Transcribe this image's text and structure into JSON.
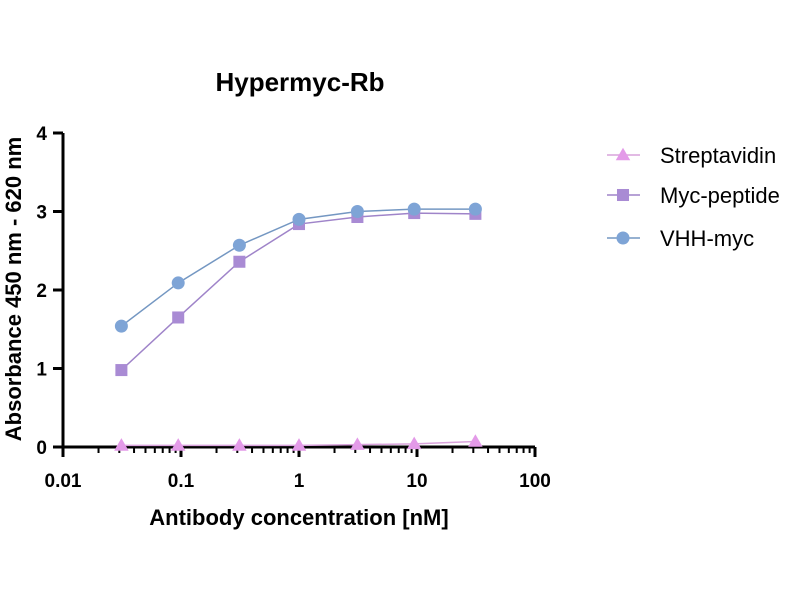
{
  "chart_data": {
    "type": "line",
    "title": "Hypermyc-Rb",
    "xlabel": "Antibody concentration [nM]",
    "ylabel": "Absorbance 450 nm - 620 nm",
    "xscale": "log",
    "xlim": [
      0.01,
      100
    ],
    "ylim": [
      0,
      4
    ],
    "x_ticks": [
      0.01,
      0.1,
      1,
      10,
      100
    ],
    "x_tick_labels": [
      "0.01",
      "0.1",
      "1",
      "10",
      "100"
    ],
    "y_ticks": [
      0,
      1,
      2,
      3,
      4
    ],
    "y_tick_labels": [
      "0",
      "1",
      "2",
      "3",
      "4"
    ],
    "x": [
      0.03125,
      0.0947,
      0.3125,
      1,
      3.125,
      9.47,
      31.25
    ],
    "series": [
      {
        "name": "Streptavidin",
        "marker": "triangle",
        "color": "#e39ae8",
        "line_color": "#d9a3dc",
        "values": [
          0.02,
          0.02,
          0.02,
          0.02,
          0.03,
          0.04,
          0.07
        ]
      },
      {
        "name": "Myc-peptide",
        "marker": "square",
        "color": "#a98bd4",
        "line_color": "#9f84c9",
        "values": [
          0.98,
          1.65,
          2.36,
          2.84,
          2.93,
          2.98,
          2.97
        ]
      },
      {
        "name": "VHH-myc",
        "marker": "circle",
        "color": "#7ea4d6",
        "line_color": "#7497c2",
        "values": [
          1.54,
          2.09,
          2.57,
          2.9,
          3.0,
          3.03,
          3.03
        ]
      }
    ],
    "legend_position": "right"
  }
}
